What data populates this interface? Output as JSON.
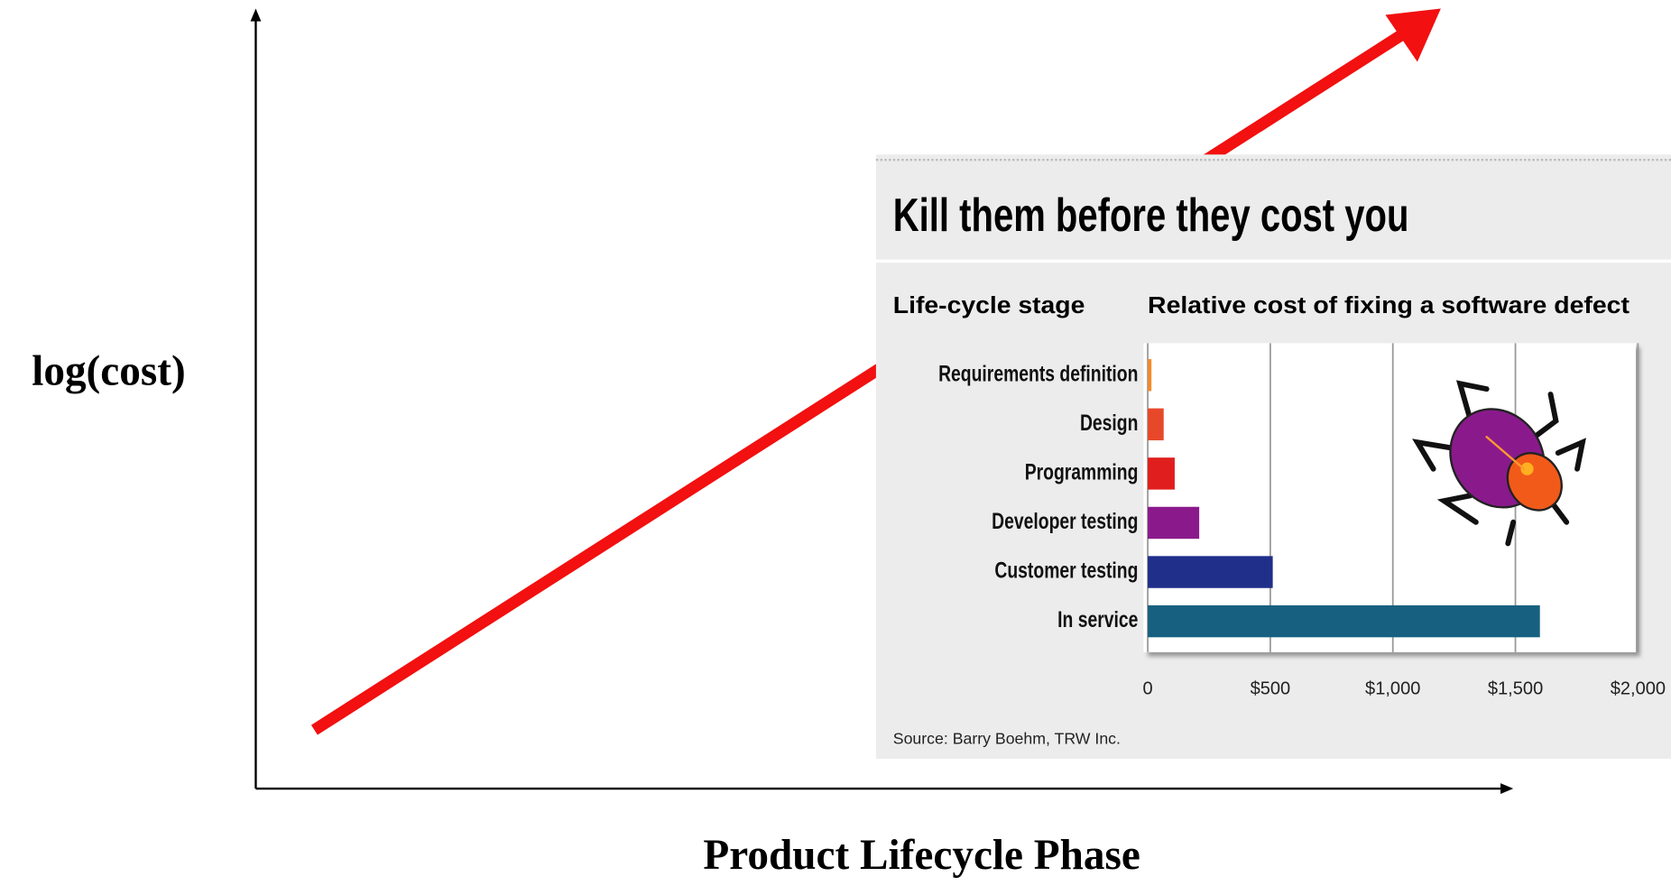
{
  "diagram": {
    "y_axis_label": "log(cost)",
    "x_axis_label": "Product Lifecycle Phase"
  },
  "chart_data": {
    "type": "bar",
    "orientation": "horizontal",
    "title": "Kill them before they cost you",
    "category_header": "Life-cycle stage",
    "value_header": "Relative cost of fixing a software defect",
    "categories": [
      "Requirements definition",
      "Design",
      "Programming",
      "Developer testing",
      "Customer testing",
      "In service"
    ],
    "values": [
      15,
      65,
      110,
      210,
      510,
      1600
    ],
    "colors": [
      "#f28a2a",
      "#e8482a",
      "#e01e1e",
      "#8a1a8c",
      "#1f2f8a",
      "#17607f"
    ],
    "xlim": [
      0,
      2000
    ],
    "xticks": [
      0,
      {
        "value": 500,
        "label": "$500"
      },
      {
        "value": 1000,
        "label": "$1,000"
      },
      {
        "value": 1500,
        "label": "$1,500"
      },
      {
        "value": 2000,
        "label": "$2,000"
      }
    ],
    "grid": true,
    "source": "Source: Barry Boehm, TRW Inc."
  }
}
